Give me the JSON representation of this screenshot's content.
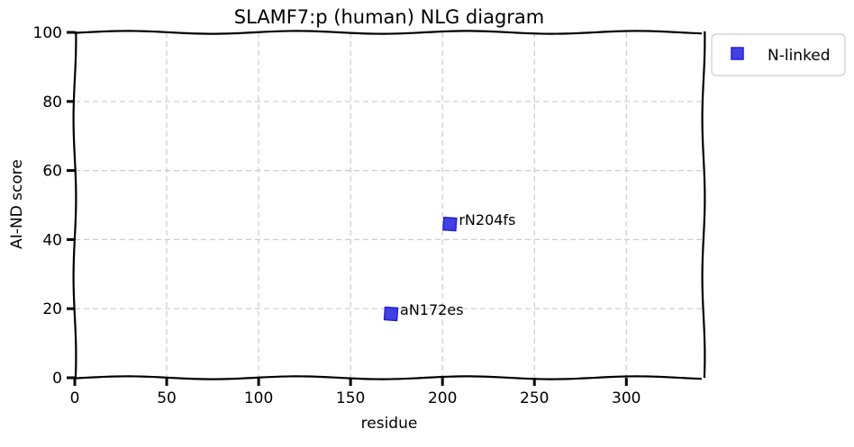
{
  "chart_data": {
    "type": "scatter",
    "title": "SLAMF7:p (human) NLG diagram",
    "xlabel": "residue",
    "ylabel": "AI-ND score",
    "xlim": [
      0,
      342
    ],
    "ylim": [
      0,
      100
    ],
    "xticks": [
      0,
      50,
      100,
      150,
      200,
      250,
      300
    ],
    "yticks": [
      0,
      20,
      40,
      60,
      80,
      100
    ],
    "grid": true,
    "legend_position": "outside-top-right",
    "series": [
      {
        "name": "N-linked",
        "color": "#1f1fe0",
        "marker": "square",
        "points": [
          {
            "x": 172,
            "y": 18.5,
            "label": "aN172es"
          },
          {
            "x": 204,
            "y": 44.5,
            "label": "rN204fs"
          }
        ]
      }
    ]
  }
}
